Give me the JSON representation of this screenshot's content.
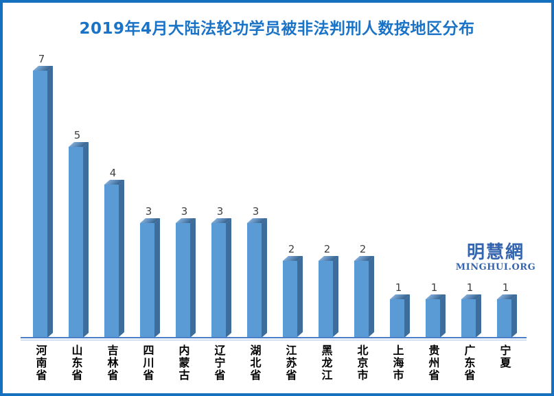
{
  "title": "2019年4月大陆法轮功学员被非法判刑人数按地区分布",
  "watermark": {
    "cn": "明慧網",
    "en": "MINGHUI.ORG"
  },
  "colors": {
    "frame_border": "#1571BF",
    "title": "#1A73C7",
    "bar_front": "#5B9BD5",
    "bar_side": "#3E6D9C",
    "bar_top_gradient_left": "#7FABD8",
    "bar_top_gradient_right": "#35628E",
    "axis_line": "#4B7EC8",
    "axis_line_secondary": "#ADC6E8",
    "value_label": "#404040",
    "category_label": "#000000",
    "watermark": "#3565AE",
    "background": "#FFFFFF"
  },
  "chart_data": {
    "type": "bar",
    "style": "3d",
    "orientation": "vertical",
    "title": "2019年4月大陆法轮功学员被非法判刑人数按地区分布",
    "categories": [
      "河南省",
      "山东省",
      "吉林省",
      "四川省",
      "内蒙古",
      "辽宁省",
      "湖北省",
      "江苏省",
      "黑龙江",
      "北京市",
      "上海市",
      "贵州省",
      "广东省",
      "宁夏"
    ],
    "values": [
      7,
      5,
      4,
      3,
      3,
      3,
      3,
      2,
      2,
      2,
      1,
      1,
      1,
      1
    ],
    "xlabel": "",
    "ylabel": "",
    "ylim": [
      0,
      7
    ],
    "data_labels": true,
    "gridlines": false,
    "legend": false,
    "y_axis_ticks_visible": false,
    "x_axis_labels_vertical": true
  }
}
